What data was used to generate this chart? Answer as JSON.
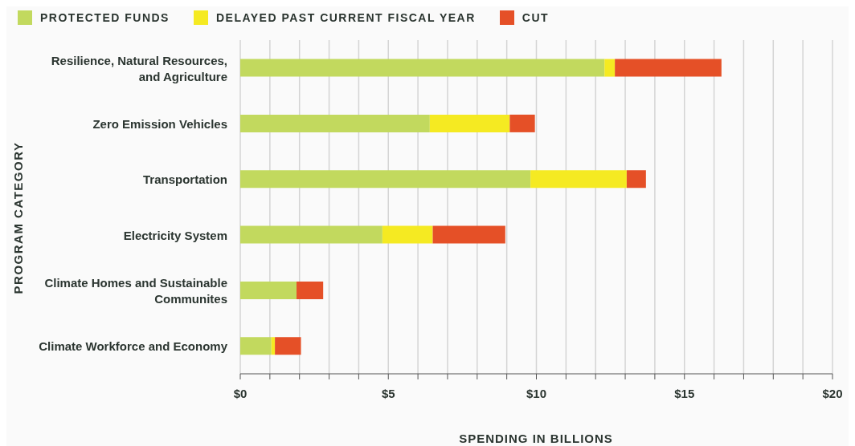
{
  "chart_data": {
    "type": "bar",
    "orientation": "horizontal",
    "stacked": true,
    "categories": [
      "Resilience, Natural Resources, and Agriculture",
      "Zero Emission Vehicles",
      "Transportation",
      "Electricity System",
      "Climate Homes and Sustainable Communites",
      "Climate Workforce and Economy"
    ],
    "series": [
      {
        "name": "PROTECTED FUNDS",
        "color": "#c2d95e",
        "values": [
          12.3,
          6.4,
          9.8,
          4.8,
          1.9,
          1.05
        ]
      },
      {
        "name": "DELAYED PAST CURRENT FISCAL YEAR",
        "color": "#f5ea22",
        "values": [
          0.35,
          2.7,
          3.25,
          1.7,
          0,
          0.12
        ]
      },
      {
        "name": "CUT",
        "color": "#e55027",
        "values": [
          3.6,
          0.85,
          0.65,
          2.45,
          0.9,
          0.88
        ]
      }
    ],
    "xlim": [
      0,
      20
    ],
    "xticks": [
      {
        "value": 0,
        "label": "$0"
      },
      {
        "value": 1,
        "label": null
      },
      {
        "value": 2,
        "label": null
      },
      {
        "value": 3,
        "label": null
      },
      {
        "value": 4,
        "label": null
      },
      {
        "value": 5,
        "label": "$5"
      },
      {
        "value": 6,
        "label": null
      },
      {
        "value": 7,
        "label": null
      },
      {
        "value": 8,
        "label": null
      },
      {
        "value": 9,
        "label": null
      },
      {
        "value": 10,
        "label": "$10"
      },
      {
        "value": 11,
        "label": null
      },
      {
        "value": 12,
        "label": null
      },
      {
        "value": 13,
        "label": null
      },
      {
        "value": 14,
        "label": null
      },
      {
        "value": 15,
        "label": "$15"
      },
      {
        "value": 16,
        "label": null
      },
      {
        "value": 17,
        "label": null
      },
      {
        "value": 18,
        "label": null
      },
      {
        "value": 19,
        "label": null
      },
      {
        "value": 20,
        "label": "$20"
      }
    ],
    "xlabel": "SPENDING IN BILLIONS",
    "ylabel": "PROGRAM CATEGORY",
    "grid": "x",
    "legend": "top left"
  }
}
